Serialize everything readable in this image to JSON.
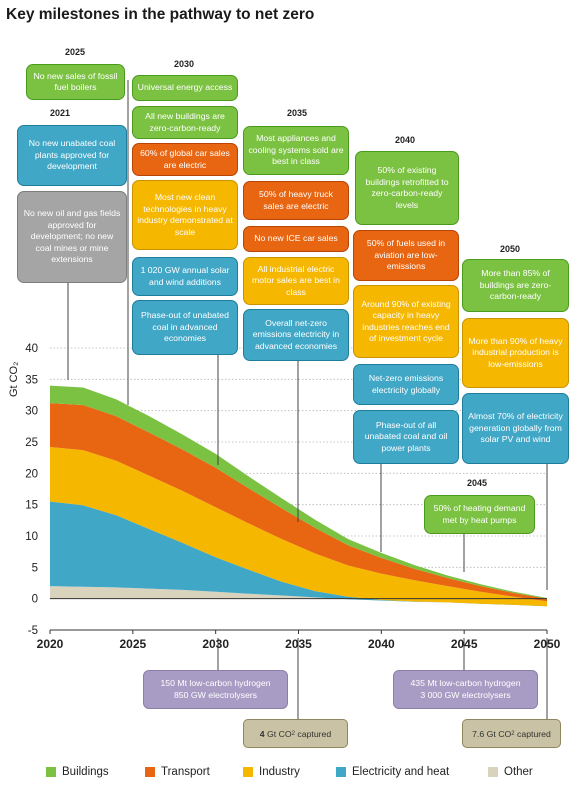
{
  "title": "Key milestones in the pathway to net zero",
  "chart_data": {
    "type": "area",
    "stacked": true,
    "title": "Key milestones in the pathway to net zero",
    "ylabel": "Gt CO₂",
    "xlim": [
      2020,
      2050
    ],
    "ylim": [
      -5,
      40
    ],
    "x_ticks": [
      "2020",
      "2025",
      "2030",
      "2035",
      "2040",
      "2045",
      "2050"
    ],
    "y_ticks": [
      "-5",
      "0",
      "5",
      "10",
      "15",
      "20",
      "25",
      "30",
      "35",
      "40"
    ],
    "grid": "horizontal dotted",
    "legend_position": "bottom",
    "x": [
      2020,
      2022,
      2024,
      2026,
      2028,
      2030,
      2032,
      2034,
      2036,
      2038,
      2040,
      2042,
      2044,
      2046,
      2048,
      2050
    ],
    "series": [
      {
        "name": "Other",
        "color": "#d9d3bd",
        "values": [
          2.0,
          1.9,
          1.8,
          1.6,
          1.4,
          1.1,
          0.8,
          0.5,
          0.2,
          -0.1,
          -0.3,
          -0.5,
          -0.6,
          -0.7,
          -0.8,
          -0.9
        ]
      },
      {
        "name": "Electricity and heat",
        "color": "#41a7c6",
        "values": [
          13.5,
          13.0,
          11.5,
          9.5,
          7.5,
          5.5,
          3.8,
          2.2,
          1.0,
          0.4,
          0.1,
          0.05,
          0.0,
          -0.1,
          -0.2,
          -0.3
        ]
      },
      {
        "name": "Industry",
        "color": "#f5b700",
        "values": [
          8.7,
          8.8,
          8.7,
          8.5,
          8.3,
          8.0,
          7.4,
          6.8,
          6.0,
          5.0,
          4.2,
          3.4,
          2.6,
          1.9,
          1.3,
          0.8
        ]
      },
      {
        "name": "Transport",
        "color": "#e86512",
        "values": [
          7.0,
          7.2,
          7.1,
          6.9,
          6.6,
          6.3,
          5.6,
          4.9,
          4.1,
          3.2,
          2.5,
          1.8,
          1.3,
          0.9,
          0.6,
          0.4
        ]
      },
      {
        "name": "Buildings",
        "color": "#7cc242",
        "values": [
          2.8,
          2.8,
          2.7,
          2.6,
          2.4,
          2.2,
          1.9,
          1.6,
          1.3,
          1.0,
          0.8,
          0.6,
          0.4,
          0.3,
          0.2,
          0.1
        ]
      }
    ],
    "legend": [
      {
        "name": "Buildings",
        "color": "#7cc242"
      },
      {
        "name": "Transport",
        "color": "#e86512"
      },
      {
        "name": "Industry",
        "color": "#f5b700"
      },
      {
        "name": "Electricity and heat",
        "color": "#41a7c6"
      },
      {
        "name": "Other",
        "color": "#d9d3bd"
      }
    ]
  },
  "milestones": {
    "year_2021": "2021",
    "year_2025": "2025",
    "year_2030": "2030",
    "year_2035": "2035",
    "year_2040": "2040",
    "year_2045": "2045",
    "year_2050": "2050",
    "m2025_boilers": "No new sales of fossil fuel boilers",
    "m2021_coal": "No new unabated coal plants approved for development",
    "m2021_oil_gas": "No new oil and gas fields approved for development; no new coal mines or mine extensions",
    "m2030_energy": "Universal energy access",
    "m2030_buildings": "All new buildings are zero-carbon-ready",
    "m2030_car": "60% of global car sales are electric",
    "m2030_industry": "Most new clean technologies in heavy industry demonstrated at scale",
    "m2030_solar": "1 020 GW annual solar and wind additions",
    "m2030_coal": "Phase-out of unabated coal in advanced economies",
    "m2035_appliances": "Most appliances and cooling systems sold are best in class",
    "m2035_truck": "50% of heavy truck sales are electric",
    "m2035_ice": "No new ICE car sales",
    "m2035_motor": "All industrial electric motor sales are best in class",
    "m2035_electricity": "Overall net-zero emissions electricity in advanced economies",
    "m2040_retrofit": "50% of existing buildings retrofitted to zero-carbon-ready levels",
    "m2040_aviation": "50% of fuels used in aviation are low-emissions",
    "m2040_capacity": "Around 90% of existing capacity in heavy industries reaches end of investment cycle",
    "m2040_netzero": "Net-zero emissions electricity globally",
    "m2040_phaseout": "Phase-out of all unabated coal and oil power plants",
    "m2050_buildings": "More than 85% of buildings are zero-carbon-ready",
    "m2050_industry": "More than 90% of heavy industrial production is low-emissions",
    "m2050_electricity": "Almost 70% of electricity generation globally from solar PV and wind",
    "m2045_heat": "50% of heating demand met by heat pumps"
  },
  "bottom": {
    "h2030_line1": "150 Mt low-carbon hydrogen",
    "h2030_line2": "850 GW electrolysers",
    "h2050_line1": "435 Mt low-carbon hydrogen",
    "h2050_line2": "3 000 GW electrolysers",
    "c2035_amount": "4",
    "c2035_text_a": " Gt CO",
    "c2035_sub": "2",
    "c2035_text_b": " captured",
    "c2050_text_a": "7.6 Gt CO",
    "c2050_sub": "2",
    "c2050_text_b": " captured"
  }
}
